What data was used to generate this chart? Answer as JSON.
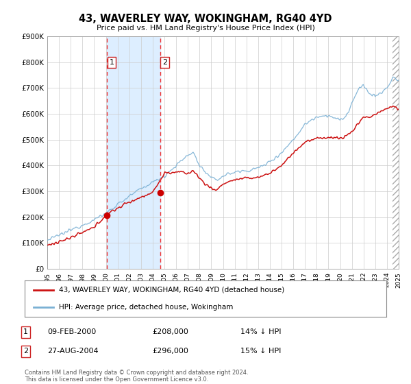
{
  "title": "43, WAVERLEY WAY, WOKINGHAM, RG40 4YD",
  "subtitle": "Price paid vs. HM Land Registry's House Price Index (HPI)",
  "xlim_start": 1995,
  "xlim_end": 2025,
  "ylim_min": 0,
  "ylim_max": 900000,
  "yticks": [
    0,
    100000,
    200000,
    300000,
    400000,
    500000,
    600000,
    700000,
    800000,
    900000
  ],
  "ytick_labels": [
    "£0",
    "£100K",
    "£200K",
    "£300K",
    "£400K",
    "£500K",
    "£600K",
    "£700K",
    "£800K",
    "£900K"
  ],
  "xticks": [
    1995,
    1996,
    1997,
    1998,
    1999,
    2000,
    2001,
    2002,
    2003,
    2004,
    2005,
    2006,
    2007,
    2008,
    2009,
    2010,
    2011,
    2012,
    2013,
    2014,
    2015,
    2016,
    2017,
    2018,
    2019,
    2020,
    2021,
    2022,
    2023,
    2024,
    2025
  ],
  "transaction1_date": 2000.11,
  "transaction1_price": 208000,
  "transaction2_date": 2004.65,
  "transaction2_price": 296000,
  "shade_color": "#ddeeff",
  "vline_color": "#ee3333",
  "dot_color": "#cc0000",
  "red_line_color": "#cc1111",
  "blue_line_color": "#7ab0d4",
  "legend1_label": "43, WAVERLEY WAY, WOKINGHAM, RG40 4YD (detached house)",
  "legend2_label": "HPI: Average price, detached house, Wokingham",
  "table_row1": [
    "1",
    "09-FEB-2000",
    "£208,000",
    "14% ↓ HPI"
  ],
  "table_row2": [
    "2",
    "27-AUG-2004",
    "£296,000",
    "15% ↓ HPI"
  ],
  "footer_line1": "Contains HM Land Registry data © Crown copyright and database right 2024.",
  "footer_line2": "This data is licensed under the Open Government Licence v3.0.",
  "background_color": "#ffffff",
  "grid_color": "#cccccc"
}
